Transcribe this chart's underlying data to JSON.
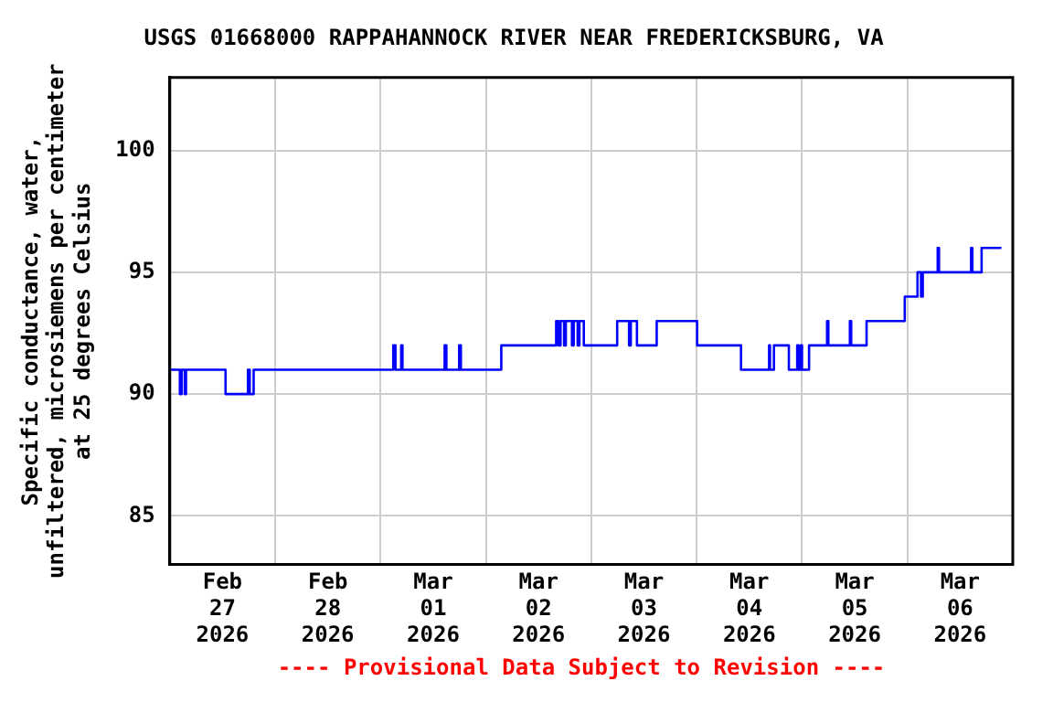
{
  "chart_data": {
    "type": "step",
    "title": "USGS 01668000 RAPPAHANNOCK RIVER NEAR FREDERICKSBURG, VA",
    "ylabel": "Specific conductance, water,\nunfiltered, microsiemens per centimeter\nat 25 degrees Celsius",
    "annotations": [
      "---- Provisional Data Subject to Revision ----"
    ],
    "x": [
      "2026-02-27T00:00",
      "2026-02-27T02:18",
      "2026-02-27T02:42",
      "2026-02-27T03:24",
      "2026-02-27T03:42",
      "2026-02-27T12:42",
      "2026-02-27T17:48",
      "2026-02-27T18:12",
      "2026-02-27T19:06",
      "2026-03-01T02:54",
      "2026-03-01T03:24",
      "2026-03-01T04:42",
      "2026-03-01T05:00",
      "2026-03-01T14:36",
      "2026-03-01T15:00",
      "2026-03-01T17:54",
      "2026-03-01T18:18",
      "2026-03-02T03:30",
      "2026-03-02T16:00",
      "2026-03-02T16:30",
      "2026-03-02T17:00",
      "2026-03-02T17:48",
      "2026-03-02T18:12",
      "2026-03-02T19:36",
      "2026-03-02T20:00",
      "2026-03-02T20:54",
      "2026-03-02T21:18",
      "2026-03-02T22:18",
      "2026-03-03T05:54",
      "2026-03-03T08:36",
      "2026-03-03T09:00",
      "2026-03-03T10:24",
      "2026-03-03T14:54",
      "2026-03-04T00:06",
      "2026-03-04T10:06",
      "2026-03-04T16:30",
      "2026-03-04T16:42",
      "2026-03-04T17:36",
      "2026-03-04T21:00",
      "2026-03-04T22:54",
      "2026-03-04T23:12",
      "2026-03-04T23:42",
      "2026-03-05T00:00",
      "2026-03-05T01:36",
      "2026-03-05T05:42",
      "2026-03-05T06:00",
      "2026-03-05T10:54",
      "2026-03-05T11:12",
      "2026-03-05T14:42",
      "2026-03-05T23:24",
      "2026-03-06T02:18",
      "2026-03-06T03:06",
      "2026-03-06T03:30",
      "2026-03-06T06:54",
      "2026-03-06T07:12",
      "2026-03-06T14:30",
      "2026-03-06T14:48",
      "2026-03-06T16:54",
      "2026-03-06T21:24"
    ],
    "series": [
      {
        "color": "#0000ff",
        "values": [
          91,
          90,
          91,
          90,
          91,
          90,
          91,
          90,
          91,
          92,
          91,
          92,
          91,
          92,
          91,
          92,
          91,
          92,
          93,
          92,
          93,
          92,
          93,
          92,
          93,
          92,
          93,
          92,
          93,
          92,
          93,
          92,
          93,
          92,
          91,
          92,
          91,
          92,
          91,
          92,
          91,
          92,
          91,
          92,
          93,
          92,
          93,
          92,
          93,
          94,
          95,
          94,
          95,
          96,
          95,
          96,
          95,
          96,
          96
        ]
      }
    ],
    "xlim": [
      "2026-02-27T00:00",
      "2026-03-07T00:00"
    ],
    "xticks": [
      {
        "value": "2026-02-27T00:00",
        "label": null
      },
      {
        "value": "2026-02-27T12:00",
        "label": "Feb\n27\n2026"
      },
      {
        "value": "2026-02-28T00:00",
        "label": null
      },
      {
        "value": "2026-02-28T12:00",
        "label": "Feb\n28\n2026"
      },
      {
        "value": "2026-03-01T00:00",
        "label": null
      },
      {
        "value": "2026-03-01T12:00",
        "label": "Mar\n01\n2026"
      },
      {
        "value": "2026-03-02T00:00",
        "label": null
      },
      {
        "value": "2026-03-02T12:00",
        "label": "Mar\n02\n2026"
      },
      {
        "value": "2026-03-03T00:00",
        "label": null
      },
      {
        "value": "2026-03-03T12:00",
        "label": "Mar\n03\n2026"
      },
      {
        "value": "2026-03-04T00:00",
        "label": null
      },
      {
        "value": "2026-03-04T12:00",
        "label": "Mar\n04\n2026"
      },
      {
        "value": "2026-03-05T00:00",
        "label": null
      },
      {
        "value": "2026-03-05T12:00",
        "label": "Mar\n05\n2026"
      },
      {
        "value": "2026-03-06T00:00",
        "label": null
      },
      {
        "value": "2026-03-06T12:00",
        "label": "Mar\n06\n2026"
      },
      {
        "value": "2026-03-07T00:00",
        "label": null
      }
    ],
    "ylim": [
      83,
      103
    ],
    "yticks": [
      85,
      90,
      95,
      100
    ],
    "grid": true,
    "legend": false
  }
}
